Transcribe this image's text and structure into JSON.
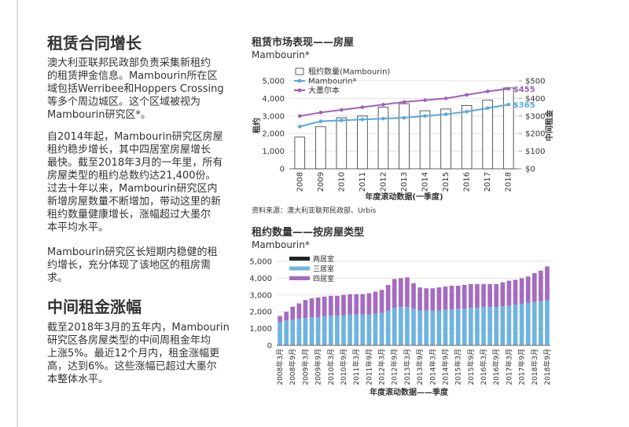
{
  "document": {
    "heading1": "租赁合同增长",
    "paragraphs": [
      [
        "澳大利亚联邦民政部负责采集新租约",
        "的租赁押金信息。Mambourin所在区",
        "域包括Werribee和Hoppers Crossing",
        "等多个周边城区。这个区域被视为",
        "Mambourin研究区*。"
      ],
      [
        "自2014年起，Mambourin研究区房屋",
        "租约稳步增长，其中四居室房屋增长",
        "最快。截至2018年3月的一年里，所有",
        "房屋类型的租约总数约达21,400份。",
        "过去十年以来，Mambourin研究区内",
        "新增房屋数量不断增加，带动这里的新",
        "租约数量健康增长，涨幅超过大墨尔",
        "本平均水平。"
      ],
      [
        "Mambourin研究区长短期内稳健的租",
        "约增长，充分体现了该地区的租房需",
        "求。"
      ]
    ],
    "heading2": "中间租金涨幅",
    "paragraphs2": [
      [
        "截至2018年3月的五年内，Mambourin",
        "研究区各房屋类型的中间周租金年均",
        "上涨5%。最近12个月内，租金涨幅更",
        "高，达到6%。这些涨幅已超过大墨尔",
        "本整体水平。"
      ]
    ]
  },
  "chart_data": [
    {
      "type": "combo",
      "title": "租赁市场表现——房屋",
      "subtitle": "Mambourin*",
      "ylabel": "租约",
      "y2label": "中间租金",
      "xlabel": "年度滚动数据(一季度)",
      "note": "资料来源：澳大利亚联邦民政部、Urbis",
      "categories": [
        "2008",
        "2009",
        "2010",
        "2011",
        "2012",
        "2013",
        "2014",
        "2015",
        "2016",
        "2017",
        "2018"
      ],
      "series": [
        {
          "name": "租约数量(Mambourin)",
          "kind": "bar",
          "color": "#ffffff",
          "values": [
            1800,
            2400,
            2900,
            3000,
            3500,
            3700,
            3300,
            3400,
            3600,
            3900,
            4600
          ]
        },
        {
          "name": "Mambourin*",
          "kind": "line",
          "axis": "y2",
          "color": "#5aa9dc",
          "values": [
            240,
            270,
            275,
            280,
            285,
            290,
            300,
            310,
            325,
            345,
            365
          ],
          "value_labels": [
            null,
            null,
            null,
            null,
            null,
            null,
            null,
            null,
            null,
            null,
            "$365"
          ]
        },
        {
          "name": "大墨尔本",
          "kind": "line",
          "axis": "y2",
          "color": "#a05fb8",
          "values": [
            300,
            320,
            335,
            350,
            365,
            380,
            390,
            400,
            420,
            440,
            455
          ],
          "value_labels": [
            null,
            null,
            null,
            null,
            null,
            null,
            null,
            null,
            null,
            null,
            "$455"
          ]
        }
      ],
      "ylim": [
        0,
        5000
      ],
      "yticks": [
        0,
        {
          "value": 1000,
          "label": "1,000"
        },
        {
          "value": 2000,
          "label": "2,000"
        },
        {
          "value": 3000,
          "label": "3,000"
        },
        {
          "value": 4000,
          "label": "4,000"
        },
        {
          "value": 5000,
          "label": "5,000"
        }
      ],
      "y2lim": [
        0,
        500
      ],
      "y2ticks": [
        {
          "value": 0,
          "label": "$0"
        },
        {
          "value": 100,
          "label": "$100"
        },
        {
          "value": 200,
          "label": "$200"
        },
        {
          "value": 300,
          "label": "$300"
        },
        {
          "value": 400,
          "label": "$400"
        },
        {
          "value": 500,
          "label": "$500"
        }
      ],
      "grid": true
    },
    {
      "type": "stacked",
      "title": "租约数量——按房屋类型",
      "subtitle": "Mambourin*",
      "xlabel": "年度滚动数据——季度",
      "categories": [
        "2008年3月",
        null,
        "2008年9月",
        null,
        "2009年3月",
        null,
        "2009年9月",
        null,
        "2010年3月",
        null,
        "2010年9月",
        null,
        "2011年3月",
        null,
        "2011年9月",
        null,
        "2012年3月",
        null,
        "2012年9月",
        null,
        "2013年3月",
        null,
        "2013年9月",
        null,
        "2014年3月",
        null,
        "2014年9月",
        null,
        "2015年3月",
        null,
        "2015年9月",
        null,
        "2016年3月",
        null,
        "2016年9月",
        null,
        "2017年3月",
        null,
        "2017年9月",
        null,
        "2018年3月",
        null,
        "2018年9月"
      ],
      "series": [
        {
          "name": "两居室",
          "color": "#222222",
          "values": [
            30,
            30,
            30,
            30,
            30,
            30,
            30,
            30,
            30,
            30,
            30,
            30,
            30,
            30,
            30,
            30,
            30,
            30,
            30,
            30,
            30,
            30,
            30,
            30,
            30,
            30,
            30,
            30,
            30,
            30,
            30,
            30,
            30,
            30,
            30,
            30,
            30,
            30,
            30,
            30,
            30,
            30,
            30
          ]
        },
        {
          "name": "三居室",
          "color": "#6fb3e0",
          "values": [
            1350,
            1450,
            1500,
            1550,
            1600,
            1650,
            1650,
            1700,
            1750,
            1750,
            1750,
            1800,
            1800,
            1800,
            1800,
            1850,
            1900,
            2050,
            2200,
            2250,
            2250,
            2150,
            2050,
            2050,
            2050,
            2050,
            2100,
            2100,
            2150,
            2150,
            2200,
            2200,
            2250,
            2250,
            2250,
            2300,
            2350,
            2400,
            2450,
            2500,
            2550,
            2600,
            2650
          ]
        },
        {
          "name": "四居室",
          "color": "#a56bc0",
          "values": [
            370,
            520,
            770,
            920,
            1070,
            1120,
            1170,
            1170,
            1170,
            1170,
            1220,
            1220,
            1220,
            1220,
            1270,
            1320,
            1370,
            1520,
            1720,
            1720,
            1770,
            1520,
            1370,
            1320,
            1320,
            1370,
            1370,
            1420,
            1370,
            1420,
            1420,
            1420,
            1370,
            1370,
            1370,
            1420,
            1470,
            1470,
            1520,
            1570,
            1720,
            1820,
            2020
          ]
        }
      ],
      "ylim": [
        0,
        5000
      ],
      "yticks": [
        0,
        {
          "value": 1000,
          "label": "1,000"
        },
        {
          "value": 2000,
          "label": "2,000"
        },
        {
          "value": 3000,
          "label": "3,000"
        },
        {
          "value": 4000,
          "label": "4,000"
        },
        {
          "value": 5000,
          "label": "5,000"
        }
      ],
      "grid": true
    }
  ]
}
